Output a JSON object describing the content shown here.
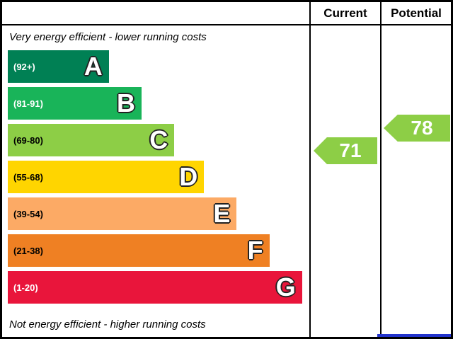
{
  "header": {
    "current_label": "Current",
    "potential_label": "Potential"
  },
  "labels": {
    "top": "Very energy efficient - lower running costs",
    "bottom": "Not energy efficient - higher running costs"
  },
  "bands": [
    {
      "letter": "A",
      "range": "(92+)",
      "color": "#008054",
      "text_color": "#ffffff",
      "width_pct": 34
    },
    {
      "letter": "B",
      "range": "(81-91)",
      "color": "#19b459",
      "text_color": "#ffffff",
      "width_pct": 45
    },
    {
      "letter": "C",
      "range": "(69-80)",
      "color": "#8dce46",
      "text_color": "#000000",
      "width_pct": 56
    },
    {
      "letter": "D",
      "range": "(55-68)",
      "color": "#ffd500",
      "text_color": "#000000",
      "width_pct": 66
    },
    {
      "letter": "E",
      "range": "(39-54)",
      "color": "#fcaa65",
      "text_color": "#000000",
      "width_pct": 77
    },
    {
      "letter": "F",
      "range": "(21-38)",
      "color": "#ef8023",
      "text_color": "#000000",
      "width_pct": 88
    },
    {
      "letter": "G",
      "range": "(1-20)",
      "color": "#e9153b",
      "text_color": "#ffffff",
      "width_pct": 99
    }
  ],
  "ratings": {
    "current": {
      "value": "71",
      "color": "#8dce46"
    },
    "potential": {
      "value": "78",
      "color": "#8dce46"
    }
  },
  "footer": {
    "accent_color": "#2233cc"
  },
  "chart_data": {
    "type": "bar",
    "title": "Energy efficiency rating (EPC)",
    "categories": [
      "A",
      "B",
      "C",
      "D",
      "E",
      "F",
      "G"
    ],
    "band_ranges": [
      "92+",
      "81-91",
      "69-80",
      "55-68",
      "39-54",
      "21-38",
      "1-20"
    ],
    "band_colors": [
      "#008054",
      "#19b459",
      "#8dce46",
      "#ffd500",
      "#fcaa65",
      "#ef8023",
      "#e9153b"
    ],
    "bar_lengths_pct": [
      34,
      45,
      56,
      66,
      77,
      88,
      99
    ],
    "series": [
      {
        "name": "Current",
        "value": 71,
        "band": "C"
      },
      {
        "name": "Potential",
        "value": 78,
        "band": "C"
      }
    ],
    "annotations": [
      "Very energy efficient - lower running costs",
      "Not energy efficient - higher running costs"
    ],
    "legend_position": "right-columns",
    "grid": false
  }
}
